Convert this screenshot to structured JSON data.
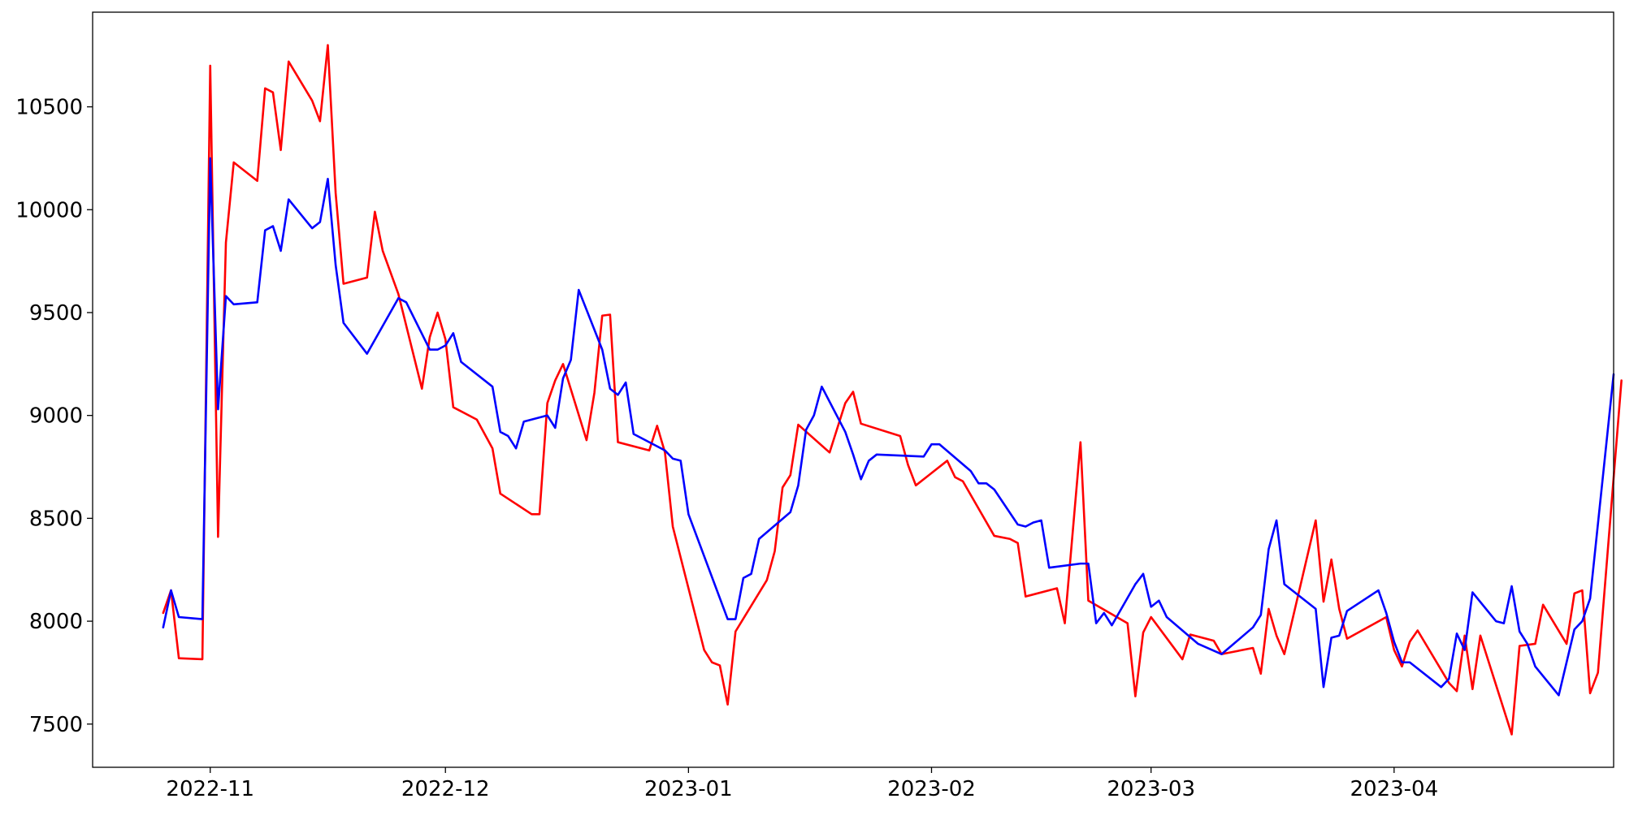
{
  "chart_data": {
    "type": "line",
    "title": "",
    "xlabel": "",
    "ylabel": "",
    "x_type": "date",
    "xlim": [
      "2022-10-17",
      "2023-04-29"
    ],
    "ylim": [
      7290,
      10960
    ],
    "grid": false,
    "legend": "none",
    "x_ticks": [
      "2022-11-01",
      "2022-12-01",
      "2023-01-01",
      "2023-02-01",
      "2023-03-01",
      "2023-04-01"
    ],
    "x_tick_labels": [
      "2022-11",
      "2022-12",
      "2023-01",
      "2023-02",
      "2023-03",
      "2023-04"
    ],
    "y_ticks": [
      7500,
      8000,
      8500,
      9000,
      9500,
      10000,
      10500
    ],
    "y_tick_labels": [
      "7500",
      "8000",
      "8500",
      "9000",
      "9500",
      "10000",
      "10500"
    ],
    "series": [
      {
        "color": "#ff0000",
        "points": [
          [
            "2022-10-26",
            8040
          ],
          [
            "2022-10-27",
            8150
          ],
          [
            "2022-10-28",
            7820
          ],
          [
            "2022-10-31",
            7815
          ],
          [
            "2022-11-01",
            10700
          ],
          [
            "2022-11-02",
            8410
          ],
          [
            "2022-11-03",
            9840
          ],
          [
            "2022-11-04",
            10230
          ],
          [
            "2022-11-07",
            10140
          ],
          [
            "2022-11-08",
            10590
          ],
          [
            "2022-11-09",
            10570
          ],
          [
            "2022-11-10",
            10290
          ],
          [
            "2022-11-11",
            10720
          ],
          [
            "2022-11-14",
            10530
          ],
          [
            "2022-11-15",
            10430
          ],
          [
            "2022-11-16",
            10800
          ],
          [
            "2022-11-17",
            10080
          ],
          [
            "2022-11-18",
            9640
          ],
          [
            "2022-11-21",
            9670
          ],
          [
            "2022-11-22",
            9990
          ],
          [
            "2022-11-23",
            9800
          ],
          [
            "2022-11-25",
            9590
          ],
          [
            "2022-11-28",
            9130
          ],
          [
            "2022-11-29",
            9380
          ],
          [
            "2022-11-30",
            9500
          ],
          [
            "2022-12-01",
            9370
          ],
          [
            "2022-12-02",
            9040
          ],
          [
            "2022-12-05",
            8980
          ],
          [
            "2022-12-06",
            8910
          ],
          [
            "2022-12-07",
            8840
          ],
          [
            "2022-12-08",
            8620
          ],
          [
            "2022-12-12",
            8520
          ],
          [
            "2022-12-13",
            8520
          ],
          [
            "2022-12-14",
            9060
          ],
          [
            "2022-12-15",
            9170
          ],
          [
            "2022-12-16",
            9250
          ],
          [
            "2022-12-19",
            8880
          ],
          [
            "2022-12-20",
            9110
          ],
          [
            "2022-12-21",
            9485
          ],
          [
            "2022-12-22",
            9490
          ],
          [
            "2022-12-23",
            8870
          ],
          [
            "2022-12-27",
            8830
          ],
          [
            "2022-12-28",
            8950
          ],
          [
            "2022-12-29",
            8820
          ],
          [
            "2022-12-30",
            8460
          ],
          [
            "2023-01-03",
            7860
          ],
          [
            "2023-01-04",
            7800
          ],
          [
            "2023-01-05",
            7785
          ],
          [
            "2023-01-06",
            7595
          ],
          [
            "2023-01-07",
            7950
          ],
          [
            "2023-01-11",
            8200
          ],
          [
            "2023-01-12",
            8340
          ],
          [
            "2023-01-13",
            8650
          ],
          [
            "2023-01-14",
            8710
          ],
          [
            "2023-01-15",
            8955
          ],
          [
            "2023-01-19",
            8820
          ],
          [
            "2023-01-20",
            8940
          ],
          [
            "2023-01-21",
            9060
          ],
          [
            "2023-01-22",
            9115
          ],
          [
            "2023-01-23",
            8960
          ],
          [
            "2023-01-28",
            8900
          ],
          [
            "2023-01-29",
            8760
          ],
          [
            "2023-01-30",
            8660
          ],
          [
            "2023-02-03",
            8780
          ],
          [
            "2023-02-04",
            8700
          ],
          [
            "2023-02-05",
            8680
          ],
          [
            "2023-02-09",
            8415
          ],
          [
            "2023-02-11",
            8400
          ],
          [
            "2023-02-12",
            8380
          ],
          [
            "2023-02-13",
            8120
          ],
          [
            "2023-02-17",
            8160
          ],
          [
            "2023-02-18",
            7990
          ],
          [
            "2023-02-20",
            8870
          ],
          [
            "2023-02-21",
            8100
          ],
          [
            "2023-02-26",
            7990
          ],
          [
            "2023-02-27",
            7635
          ],
          [
            "2023-02-28",
            7945
          ],
          [
            "2023-03-01",
            8020
          ],
          [
            "2023-03-05",
            7815
          ],
          [
            "2023-03-06",
            7935
          ],
          [
            "2023-03-09",
            7905
          ],
          [
            "2023-03-10",
            7840
          ],
          [
            "2023-03-14",
            7870
          ],
          [
            "2023-03-15",
            7745
          ],
          [
            "2023-03-16",
            8060
          ],
          [
            "2023-03-17",
            7930
          ],
          [
            "2023-03-18",
            7840
          ],
          [
            "2023-03-22",
            8490
          ],
          [
            "2023-03-23",
            8095
          ],
          [
            "2023-03-24",
            8300
          ],
          [
            "2023-03-25",
            8060
          ],
          [
            "2023-03-26",
            7915
          ],
          [
            "2023-03-31",
            8020
          ],
          [
            "2023-04-01",
            7860
          ],
          [
            "2023-04-02",
            7780
          ],
          [
            "2023-04-03",
            7900
          ],
          [
            "2023-04-04",
            7955
          ],
          [
            "2023-04-08",
            7700
          ],
          [
            "2023-04-09",
            7660
          ],
          [
            "2023-04-10",
            7930
          ],
          [
            "2023-04-11",
            7670
          ],
          [
            "2023-04-12",
            7930
          ],
          [
            "2023-04-16",
            7450
          ],
          [
            "2023-04-17",
            7880
          ],
          [
            "2023-04-19",
            7890
          ],
          [
            "2023-04-20",
            8080
          ],
          [
            "2023-04-23",
            7890
          ],
          [
            "2023-04-24",
            8135
          ],
          [
            "2023-04-25",
            8150
          ],
          [
            "2023-04-26",
            7650
          ],
          [
            "2023-04-27",
            7750
          ],
          [
            "2023-04-30",
            9170
          ]
        ]
      },
      {
        "color": "#0000ff",
        "points": [
          [
            "2022-10-26",
            7970
          ],
          [
            "2022-10-27",
            8150
          ],
          [
            "2022-10-28",
            8020
          ],
          [
            "2022-10-31",
            8010
          ],
          [
            "2022-11-01",
            10250
          ],
          [
            "2022-11-02",
            9030
          ],
          [
            "2022-11-03",
            9580
          ],
          [
            "2022-11-04",
            9540
          ],
          [
            "2022-11-07",
            9550
          ],
          [
            "2022-11-08",
            9900
          ],
          [
            "2022-11-09",
            9920
          ],
          [
            "2022-11-10",
            9800
          ],
          [
            "2022-11-11",
            10050
          ],
          [
            "2022-11-14",
            9910
          ],
          [
            "2022-11-15",
            9940
          ],
          [
            "2022-11-16",
            10150
          ],
          [
            "2022-11-17",
            9730
          ],
          [
            "2022-11-18",
            9450
          ],
          [
            "2022-11-21",
            9300
          ],
          [
            "2022-11-25",
            9570
          ],
          [
            "2022-11-26",
            9550
          ],
          [
            "2022-11-29",
            9320
          ],
          [
            "2022-11-30",
            9320
          ],
          [
            "2022-12-01",
            9340
          ],
          [
            "2022-12-02",
            9400
          ],
          [
            "2022-12-03",
            9260
          ],
          [
            "2022-12-07",
            9140
          ],
          [
            "2022-12-08",
            8920
          ],
          [
            "2022-12-09",
            8900
          ],
          [
            "2022-12-10",
            8840
          ],
          [
            "2022-12-11",
            8970
          ],
          [
            "2022-12-14",
            9000
          ],
          [
            "2022-12-15",
            8940
          ],
          [
            "2022-12-16",
            9180
          ],
          [
            "2022-12-17",
            9270
          ],
          [
            "2022-12-18",
            9610
          ],
          [
            "2022-12-21",
            9320
          ],
          [
            "2022-12-22",
            9130
          ],
          [
            "2022-12-23",
            9100
          ],
          [
            "2022-12-24",
            9160
          ],
          [
            "2022-12-25",
            8910
          ],
          [
            "2022-12-29",
            8830
          ],
          [
            "2022-12-30",
            8790
          ],
          [
            "2022-12-31",
            8780
          ],
          [
            "2023-01-01",
            8520
          ],
          [
            "2023-01-06",
            8010
          ],
          [
            "2023-01-07",
            8010
          ],
          [
            "2023-01-08",
            8210
          ],
          [
            "2023-01-09",
            8230
          ],
          [
            "2023-01-10",
            8400
          ],
          [
            "2023-01-14",
            8530
          ],
          [
            "2023-01-15",
            8660
          ],
          [
            "2023-01-16",
            8930
          ],
          [
            "2023-01-17",
            9000
          ],
          [
            "2023-01-18",
            9140
          ],
          [
            "2023-01-21",
            8920
          ],
          [
            "2023-01-22",
            8810
          ],
          [
            "2023-01-23",
            8690
          ],
          [
            "2023-01-24",
            8780
          ],
          [
            "2023-01-25",
            8810
          ],
          [
            "2023-01-31",
            8800
          ],
          [
            "2023-02-01",
            8860
          ],
          [
            "2023-02-02",
            8860
          ],
          [
            "2023-02-06",
            8730
          ],
          [
            "2023-02-07",
            8670
          ],
          [
            "2023-02-08",
            8670
          ],
          [
            "2023-02-09",
            8640
          ],
          [
            "2023-02-12",
            8470
          ],
          [
            "2023-02-13",
            8460
          ],
          [
            "2023-02-14",
            8480
          ],
          [
            "2023-02-15",
            8490
          ],
          [
            "2023-02-16",
            8260
          ],
          [
            "2023-02-20",
            8280
          ],
          [
            "2023-02-21",
            8280
          ],
          [
            "2023-02-22",
            7990
          ],
          [
            "2023-02-23",
            8040
          ],
          [
            "2023-02-24",
            7980
          ],
          [
            "2023-02-27",
            8180
          ],
          [
            "2023-02-28",
            8230
          ],
          [
            "2023-03-01",
            8070
          ],
          [
            "2023-03-02",
            8100
          ],
          [
            "2023-03-03",
            8020
          ],
          [
            "2023-03-07",
            7890
          ],
          [
            "2023-03-10",
            7840
          ],
          [
            "2023-03-14",
            7970
          ],
          [
            "2023-03-15",
            8030
          ],
          [
            "2023-03-16",
            8350
          ],
          [
            "2023-03-17",
            8490
          ],
          [
            "2023-03-18",
            8180
          ],
          [
            "2023-03-22",
            8060
          ],
          [
            "2023-03-23",
            7680
          ],
          [
            "2023-03-24",
            7920
          ],
          [
            "2023-03-25",
            7930
          ],
          [
            "2023-03-26",
            8050
          ],
          [
            "2023-03-30",
            8150
          ],
          [
            "2023-03-31",
            8040
          ],
          [
            "2023-04-01",
            7900
          ],
          [
            "2023-04-02",
            7800
          ],
          [
            "2023-04-03",
            7800
          ],
          [
            "2023-04-07",
            7680
          ],
          [
            "2023-04-08",
            7720
          ],
          [
            "2023-04-09",
            7940
          ],
          [
            "2023-04-10",
            7860
          ],
          [
            "2023-04-11",
            8140
          ],
          [
            "2023-04-14",
            8000
          ],
          [
            "2023-04-15",
            7990
          ],
          [
            "2023-04-16",
            8170
          ],
          [
            "2023-04-17",
            7950
          ],
          [
            "2023-04-18",
            7890
          ],
          [
            "2023-04-19",
            7780
          ],
          [
            "2023-04-22",
            7640
          ],
          [
            "2023-04-24",
            7960
          ],
          [
            "2023-04-25",
            8000
          ],
          [
            "2023-04-26",
            8110
          ],
          [
            "2023-04-29",
            9200
          ]
        ]
      }
    ]
  }
}
